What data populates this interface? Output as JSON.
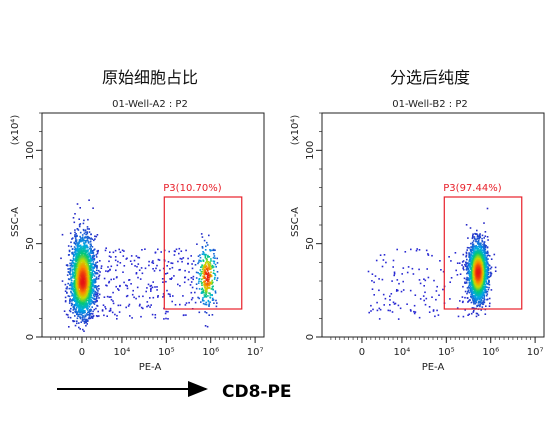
{
  "figure": {
    "arrow_label": "CD8-PE"
  },
  "chart_data": [
    {
      "type": "scatter",
      "heading": "原始细胞占比",
      "title": "01-Well-A2 : P2",
      "xlabel": "PE-A",
      "ylabel": "SSC-A",
      "yunit": "(x10⁴)",
      "x_scale": "biexponential",
      "x_ticks": [
        {
          "value": 0,
          "label": "0"
        },
        {
          "value": 10000,
          "label": "10⁴"
        },
        {
          "value": 100000,
          "label": "10⁵"
        },
        {
          "value": 1000000,
          "label": "10⁶"
        },
        {
          "value": 10000000,
          "label": "10⁷"
        }
      ],
      "y_ticks": [
        {
          "value": 0,
          "label": "0"
        },
        {
          "value": 50,
          "label": "50"
        },
        {
          "value": 100,
          "label": "100"
        }
      ],
      "ylim": [
        0,
        120
      ],
      "gate": {
        "name": "P3",
        "percent": "10.70%",
        "label": "P3(10.70%)",
        "x_range": [
          90000,
          5000000
        ],
        "y_range": [
          15,
          75
        ],
        "color": "#e8202a"
      },
      "populations": [
        {
          "name": "main",
          "x_center": 0,
          "y_center": 30,
          "count": 2300
        },
        {
          "name": "positive",
          "x_center": 800000,
          "y_center": 33,
          "count": 320
        },
        {
          "name": "scatter",
          "count": 280
        }
      ]
    },
    {
      "type": "scatter",
      "heading": "分选后纯度",
      "title": "01-Well-B2 : P2",
      "xlabel": "PE-A",
      "ylabel": "SSC-A",
      "yunit": "(x10⁴)",
      "x_scale": "biexponential",
      "x_ticks": [
        {
          "value": 0,
          "label": "0"
        },
        {
          "value": 10000,
          "label": "10⁴"
        },
        {
          "value": 100000,
          "label": "10⁵"
        },
        {
          "value": 1000000,
          "label": "10⁶"
        },
        {
          "value": 10000000,
          "label": "10⁷"
        }
      ],
      "y_ticks": [
        {
          "value": 0,
          "label": "0"
        },
        {
          "value": 50,
          "label": "50"
        },
        {
          "value": 100,
          "label": "100"
        }
      ],
      "ylim": [
        0,
        120
      ],
      "gate": {
        "name": "P3",
        "percent": "97.44%",
        "label": "P3(97.44%)",
        "x_range": [
          90000,
          5000000
        ],
        "y_range": [
          15,
          75
        ],
        "color": "#e8202a"
      },
      "populations": [
        {
          "name": "positive",
          "x_center": 500000,
          "y_center": 35,
          "count": 1900
        },
        {
          "name": "scatter",
          "count": 150
        }
      ]
    }
  ]
}
